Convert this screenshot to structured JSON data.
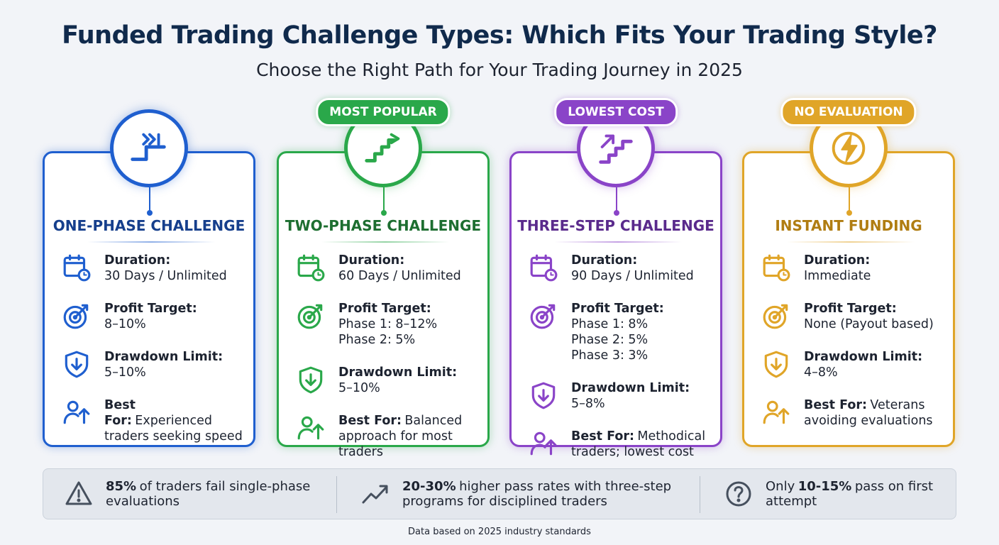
{
  "header": {
    "title": "Funded Trading Challenge Types: Which Fits Your Trading Style?",
    "subtitle": "Choose the Right Path for Your Trading Journey in 2025"
  },
  "cards": [
    {
      "title": "ONE-PHASE CHALLENGE",
      "items": [
        {
          "label": "Duration:",
          "lines": [
            "30 Days / Unlimited"
          ]
        },
        {
          "label": "Profit Target:",
          "lines": [
            "8–10%"
          ]
        },
        {
          "label": "Drawdown Limit:",
          "lines": [
            "5–10%"
          ]
        },
        {
          "label": "Best For:",
          "lines": [
            "Experienced traders seeking speed"
          ]
        }
      ]
    },
    {
      "badge": "MOST POPULAR",
      "title": "TWO-PHASE CHALLENGE",
      "items": [
        {
          "label": "Duration:",
          "lines": [
            "60 Days / Unlimited"
          ]
        },
        {
          "label": "Profit Target:",
          "lines": [
            "Phase 1: 8–12%",
            "Phase 2: 5%"
          ]
        },
        {
          "label": "Drawdown Limit:",
          "lines": [
            "5–10%"
          ]
        },
        {
          "label": "Best For:",
          "lines": [
            "Balanced approach for most traders"
          ]
        }
      ]
    },
    {
      "badge": "LOWEST COST",
      "title": "THREE-STEP CHALLENGE",
      "items": [
        {
          "label": "Duration:",
          "lines": [
            "90 Days / Unlimited"
          ]
        },
        {
          "label": "Profit Target:",
          "lines": [
            "Phase 1: 8%",
            "Phase 2: 5%",
            "Phase 3: 3%"
          ]
        },
        {
          "label": "Drawdown Limit:",
          "lines": [
            "5–8%"
          ]
        },
        {
          "label": "Best For:",
          "lines": [
            "Methodical traders; lowest cost"
          ]
        }
      ]
    },
    {
      "badge": "NO EVALUATION",
      "title": "INSTANT FUNDING",
      "items": [
        {
          "label": "Duration:",
          "lines": [
            "Immediate"
          ]
        },
        {
          "label": "Profit Target:",
          "lines": [
            "None (Payout based)"
          ]
        },
        {
          "label": "Drawdown Limit:",
          "lines": [
            "4–8%"
          ]
        },
        {
          "label": "Best For:",
          "lines": [
            "Veterans avoiding evaluations"
          ]
        }
      ]
    }
  ],
  "stats": [
    {
      "bold": "85%",
      "post": "of traders fail single-phase evaluations"
    },
    {
      "bold": "20-30%",
      "post": "higher pass rates with three-step programs for disciplined traders"
    },
    {
      "pre": "Only",
      "bold": "10-15%",
      "post": "pass on first attempt"
    }
  ],
  "footnote": "Data based on 2025 industry standards"
}
